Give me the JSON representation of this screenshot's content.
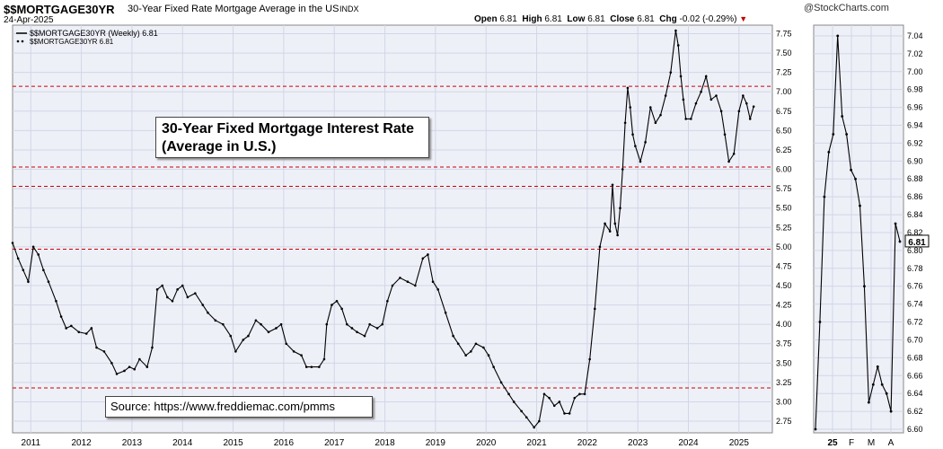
{
  "header": {
    "symbol": "$$MORTGAGE30YR",
    "name": "30-Year Fixed Rate Mortgage Average in the US",
    "exchange": "INDX",
    "date": "24-Apr-2025",
    "logo": "@StockCharts.com",
    "open_label": "Open",
    "open": "6.81",
    "high_label": "High",
    "high": "6.81",
    "low_label": "Low",
    "low": "6.81",
    "close_label": "Close",
    "close": "6.81",
    "chg_label": "Chg",
    "chg": "-0.02 (-0.29%)",
    "chg_icon": "down-triangle-icon"
  },
  "legend": {
    "line1": "$$MORTGAGE30YR (Weekly) 6.81",
    "line2": "$$MORTGAGE30YR 6.81"
  },
  "annotations": {
    "title_line1": "30-Year Fixed Mortgage Interest Rate",
    "title_line2": "(Average in U.S.)",
    "source": "Source: https://www.freddiemac.com/pmms"
  },
  "colors": {
    "line": "#000000",
    "plot_bg": "#eef0f8",
    "ref_line": "#cc0000"
  },
  "chart_data": [
    {
      "type": "line",
      "title": "$$MORTGAGE30YR (Weekly)",
      "x_ticks": [
        "2011",
        "2012",
        "2013",
        "2014",
        "2015",
        "2016",
        "2017",
        "2018",
        "2019",
        "2020",
        "2021",
        "2022",
        "2023",
        "2024",
        "2025"
      ],
      "y_ticks": [
        "2.75",
        "3.00",
        "3.25",
        "3.50",
        "3.75",
        "4.00",
        "4.25",
        "4.50",
        "4.75",
        "5.00",
        "5.25",
        "5.50",
        "5.75",
        "6.00",
        "6.25",
        "6.50",
        "6.75",
        "7.00",
        "7.25",
        "7.50",
        "7.75"
      ],
      "ylim": [
        2.6,
        7.86
      ],
      "xlim": [
        2010.64,
        2025.66
      ],
      "last_value_label": "6.81",
      "reference_lines": [
        3.18,
        4.97,
        5.78,
        6.03,
        7.07
      ],
      "grid": true,
      "series": [
        {
          "name": "$$MORTGAGE30YR",
          "x": [
            2010.64,
            2010.75,
            2010.85,
            2010.95,
            2011.05,
            2011.15,
            2011.25,
            2011.35,
            2011.5,
            2011.6,
            2011.7,
            2011.8,
            2011.95,
            2012.1,
            2012.2,
            2012.3,
            2012.45,
            2012.6,
            2012.7,
            2012.85,
            2012.95,
            2013.05,
            2013.15,
            2013.3,
            2013.4,
            2013.5,
            2013.6,
            2013.7,
            2013.8,
            2013.9,
            2014.0,
            2014.1,
            2014.25,
            2014.4,
            2014.5,
            2014.65,
            2014.8,
            2014.95,
            2015.05,
            2015.2,
            2015.3,
            2015.45,
            2015.55,
            2015.7,
            2015.85,
            2015.95,
            2016.05,
            2016.2,
            2016.35,
            2016.45,
            2016.55,
            2016.7,
            2016.8,
            2016.85,
            2016.95,
            2017.05,
            2017.15,
            2017.25,
            2017.35,
            2017.45,
            2017.6,
            2017.7,
            2017.85,
            2017.95,
            2018.05,
            2018.15,
            2018.3,
            2018.45,
            2018.6,
            2018.75,
            2018.85,
            2018.95,
            2019.05,
            2019.2,
            2019.35,
            2019.45,
            2019.6,
            2019.7,
            2019.8,
            2019.95,
            2020.05,
            2020.15,
            2020.3,
            2020.45,
            2020.55,
            2020.7,
            2020.8,
            2020.95,
            2021.05,
            2021.15,
            2021.25,
            2021.35,
            2021.45,
            2021.55,
            2021.65,
            2021.75,
            2021.85,
            2021.95,
            2022.05,
            2022.15,
            2022.25,
            2022.35,
            2022.45,
            2022.5,
            2022.55,
            2022.6,
            2022.65,
            2022.7,
            2022.75,
            2022.8,
            2022.85,
            2022.9,
            2022.95,
            2023.05,
            2023.15,
            2023.25,
            2023.35,
            2023.45,
            2023.55,
            2023.65,
            2023.75,
            2023.8,
            2023.85,
            2023.9,
            2023.95,
            2024.05,
            2024.15,
            2024.25,
            2024.35,
            2024.45,
            2024.55,
            2024.65,
            2024.72,
            2024.8,
            2024.9,
            2025.0,
            2025.08,
            2025.15,
            2025.22,
            2025.29
          ],
          "values": [
            5.05,
            4.85,
            4.7,
            4.55,
            5.0,
            4.9,
            4.7,
            4.55,
            4.3,
            4.1,
            3.95,
            3.98,
            3.9,
            3.88,
            3.95,
            3.7,
            3.65,
            3.5,
            3.36,
            3.4,
            3.45,
            3.42,
            3.55,
            3.45,
            3.7,
            4.45,
            4.5,
            4.35,
            4.3,
            4.45,
            4.5,
            4.35,
            4.4,
            4.25,
            4.15,
            4.05,
            4.0,
            3.85,
            3.65,
            3.8,
            3.85,
            4.05,
            4.0,
            3.9,
            3.95,
            4.0,
            3.75,
            3.65,
            3.6,
            3.45,
            3.45,
            3.45,
            3.55,
            4.0,
            4.25,
            4.3,
            4.2,
            4.0,
            3.95,
            3.9,
            3.85,
            4.0,
            3.95,
            4.0,
            4.3,
            4.5,
            4.6,
            4.55,
            4.5,
            4.85,
            4.9,
            4.55,
            4.45,
            4.15,
            3.85,
            3.75,
            3.6,
            3.65,
            3.75,
            3.7,
            3.6,
            3.45,
            3.25,
            3.1,
            3.0,
            2.88,
            2.8,
            2.67,
            2.75,
            3.1,
            3.05,
            2.95,
            3.0,
            2.85,
            2.85,
            3.05,
            3.1,
            3.1,
            3.55,
            4.2,
            5.0,
            5.3,
            5.2,
            5.8,
            5.3,
            5.15,
            5.5,
            6.0,
            6.6,
            7.05,
            6.8,
            6.45,
            6.3,
            6.1,
            6.35,
            6.8,
            6.6,
            6.7,
            6.95,
            7.25,
            7.79,
            7.6,
            7.2,
            6.9,
            6.65,
            6.65,
            6.85,
            7.0,
            7.2,
            6.9,
            6.95,
            6.75,
            6.45,
            6.1,
            6.2,
            6.75,
            6.95,
            6.85,
            6.65,
            6.81
          ]
        }
      ]
    },
    {
      "type": "line",
      "title": "$$MORTGAGE30YR (Daily, zoom)",
      "x_ticks": [
        "25",
        "F",
        "M",
        "A"
      ],
      "y_ticks": [
        "6.60",
        "6.62",
        "6.64",
        "6.66",
        "6.68",
        "6.70",
        "6.72",
        "6.74",
        "6.76",
        "6.78",
        "6.80",
        "6.82",
        "6.84",
        "6.86",
        "6.88",
        "6.90",
        "6.92",
        "6.94",
        "6.96",
        "6.98",
        "7.00",
        "7.02",
        "7.04"
      ],
      "ylim": [
        6.596,
        7.052
      ],
      "last_value_label": "6.81",
      "grid": true,
      "series": [
        {
          "name": "$$MORTGAGE30YR",
          "x": [
            0,
            1,
            2,
            3,
            4,
            5,
            6,
            7,
            8,
            9,
            10,
            11,
            12,
            13,
            14,
            15,
            16,
            17,
            18,
            19
          ],
          "values": [
            6.6,
            6.72,
            6.86,
            6.91,
            6.93,
            7.04,
            6.95,
            6.93,
            6.89,
            6.88,
            6.85,
            6.76,
            6.63,
            6.65,
            6.67,
            6.65,
            6.64,
            6.62,
            6.83,
            6.81
          ]
        }
      ]
    }
  ]
}
